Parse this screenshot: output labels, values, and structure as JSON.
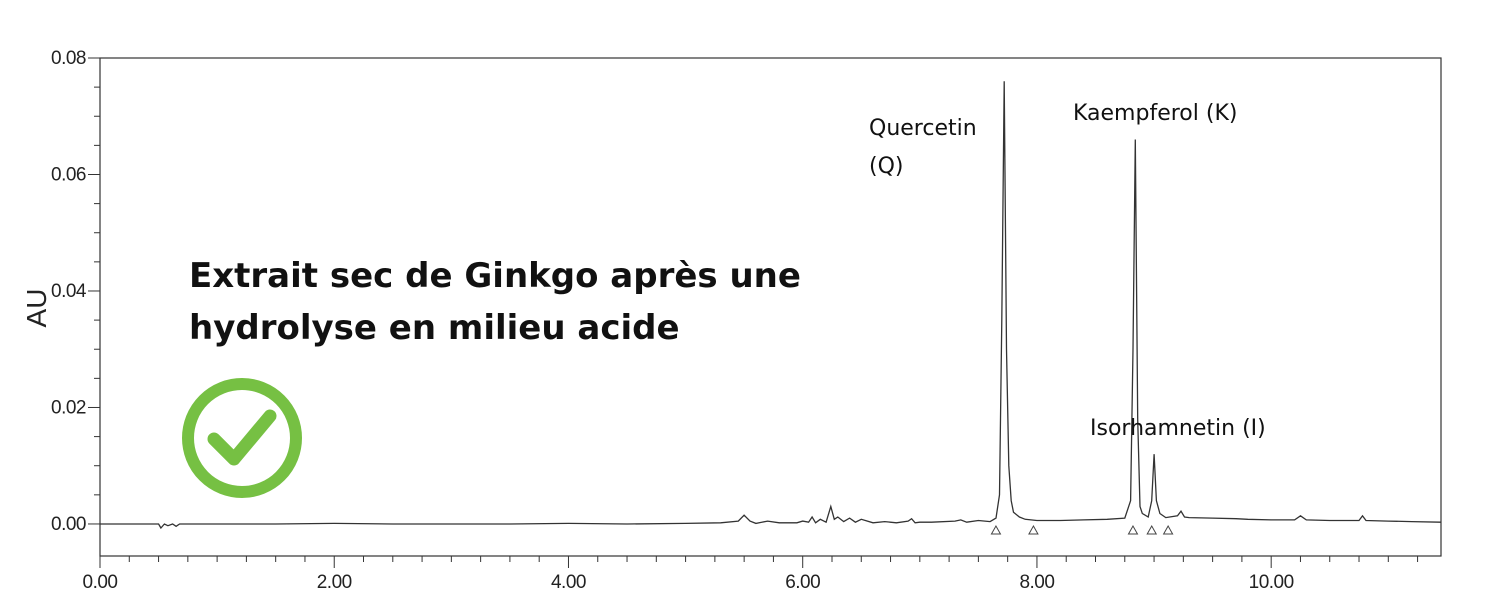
{
  "chart_data": {
    "type": "line",
    "ylabel": "AU",
    "xlabel": "",
    "xlim": [
      0,
      11.45
    ],
    "ylim": [
      -0.0055,
      0.08
    ],
    "x_ticks": [
      0,
      2,
      4,
      6,
      8,
      10
    ],
    "x_tick_labels": [
      "0.00",
      "2.00",
      "4.00",
      "6.00",
      "8.00",
      "10.00"
    ],
    "y_ticks": [
      0,
      0.02,
      0.04,
      0.06,
      0.08
    ],
    "y_tick_labels": [
      "0.00",
      "0.02",
      "0.04",
      "0.06",
      "0.08"
    ],
    "grid": false,
    "series": [
      {
        "x": [
          0.0,
          0.5,
          0.52,
          0.55,
          0.58,
          0.62,
          0.65,
          0.68,
          0.75,
          1.0,
          1.5,
          2.0,
          2.5,
          3.0,
          3.5,
          4.0,
          4.5,
          5.0,
          5.3,
          5.45,
          5.5,
          5.55,
          5.6,
          5.7,
          5.8,
          5.95,
          6.0,
          6.05,
          6.08,
          6.11,
          6.15,
          6.2,
          6.24,
          6.27,
          6.3,
          6.35,
          6.4,
          6.45,
          6.5,
          6.6,
          6.7,
          6.8,
          6.9,
          6.93,
          6.96,
          7.0,
          7.1,
          7.3,
          7.35,
          7.4,
          7.5,
          7.6,
          7.65,
          7.68,
          7.7,
          7.72,
          7.74,
          7.76,
          7.78,
          7.8,
          7.85,
          7.9,
          8.0,
          8.2,
          8.4,
          8.6,
          8.75,
          8.8,
          8.82,
          8.84,
          8.86,
          8.88,
          8.9,
          8.95,
          8.98,
          9.0,
          9.02,
          9.05,
          9.1,
          9.2,
          9.23,
          9.26,
          9.3,
          9.5,
          9.7,
          9.8,
          10.0,
          10.2,
          10.25,
          10.3,
          10.5,
          10.75,
          10.78,
          10.81,
          11.0,
          11.2,
          11.45
        ],
        "y": [
          0.0,
          0.0,
          -0.0007,
          0.0,
          -0.0003,
          0.0,
          -0.0004,
          0.0,
          0.0,
          0.0,
          0.0,
          0.0001,
          0.0,
          0.0,
          0.0,
          0.0001,
          0.0,
          0.0001,
          0.0002,
          0.0005,
          0.0015,
          0.0005,
          0.0001,
          0.0005,
          0.0002,
          0.0002,
          0.0005,
          0.0003,
          0.0012,
          0.0002,
          0.0008,
          0.0003,
          0.003,
          0.0008,
          0.0012,
          0.0004,
          0.001,
          0.0003,
          0.0008,
          0.0002,
          0.0004,
          0.0002,
          0.0005,
          0.0009,
          0.0002,
          0.0003,
          0.0003,
          0.0005,
          0.0007,
          0.0003,
          0.0006,
          0.0004,
          0.001,
          0.005,
          0.035,
          0.076,
          0.03,
          0.01,
          0.004,
          0.002,
          0.0012,
          0.0008,
          0.0006,
          0.0006,
          0.0007,
          0.0008,
          0.001,
          0.004,
          0.03,
          0.066,
          0.018,
          0.003,
          0.0018,
          0.0012,
          0.004,
          0.012,
          0.004,
          0.0018,
          0.0011,
          0.0014,
          0.0022,
          0.0012,
          0.0011,
          0.001,
          0.0009,
          0.0008,
          0.0007,
          0.0007,
          0.0014,
          0.0007,
          0.0006,
          0.0006,
          0.0014,
          0.0006,
          0.0005,
          0.0004,
          0.0003
        ]
      }
    ],
    "peak_labels": [
      {
        "text": "Quercetin",
        "x": 7.72,
        "y": 0.076
      },
      {
        "text": "(Q)",
        "x": 7.72,
        "y": 0.076
      },
      {
        "text": "Kaempferol (K)",
        "x": 8.84,
        "y": 0.066
      },
      {
        "text": "Isorhamnetin (I)",
        "x": 9.0,
        "y": 0.012
      }
    ],
    "integration_markers_x": [
      7.65,
      7.97,
      8.82,
      8.98,
      9.12
    ]
  },
  "annotation": {
    "line1": "Extrait sec de Ginkgo après une",
    "line2": "hydrolyse en milieu acide",
    "check_icon": "check-circle-icon",
    "check_color": "#76c043"
  },
  "colors": {
    "trace": "#333333",
    "axis": "#333333"
  }
}
